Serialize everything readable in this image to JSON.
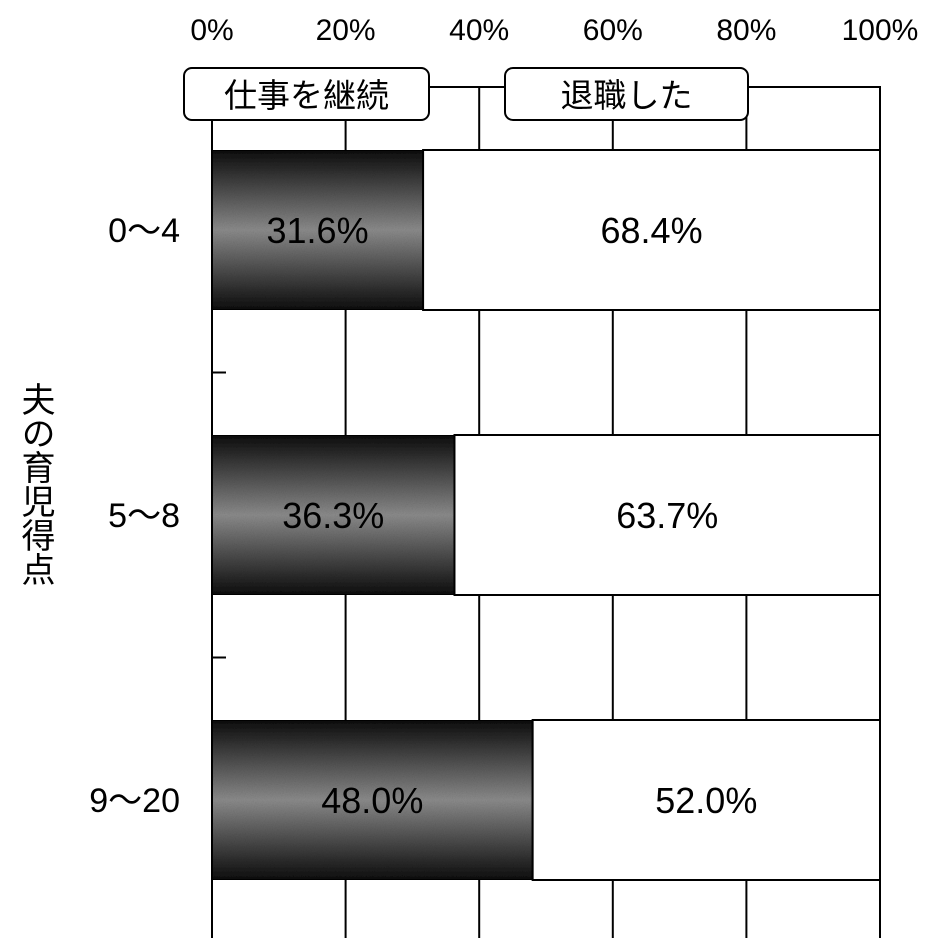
{
  "chart_data": {
    "type": "bar",
    "orientation": "horizontal",
    "stacked": true,
    "percent": true,
    "ylabel": "夫の育児得点",
    "xlim": [
      0,
      100
    ],
    "x_ticks": [
      "0%",
      "20%",
      "40%",
      "60%",
      "80%",
      "100%"
    ],
    "categories": [
      "0〜4",
      "5〜8",
      "9〜20"
    ],
    "series": [
      {
        "name": "仕事を継続",
        "values": [
          31.6,
          36.3,
          48.0
        ],
        "labels": [
          "31.6%",
          "36.3%",
          "48.0%"
        ],
        "color": "#555555"
      },
      {
        "name": "退職した",
        "values": [
          68.4,
          63.7,
          52.0
        ],
        "labels": [
          "68.4%",
          "63.7%",
          "52.0%"
        ],
        "color": "#ffffff"
      }
    ],
    "legend_position": "top",
    "grid": true
  }
}
